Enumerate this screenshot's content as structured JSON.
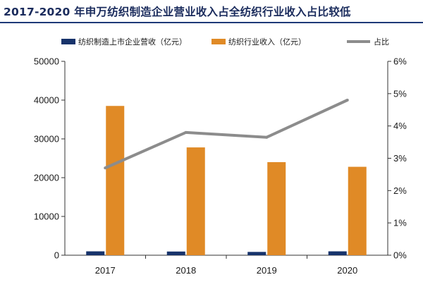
{
  "title": "2017-2020 年申万纺织制造企业营业收入占全纺织行业收入占比较低",
  "colors": {
    "title": "#1a2b5c",
    "rule": "#1f3a78",
    "manufacturing": "#17336b",
    "industry": "#e08a26",
    "ratio": "#8c8c8c"
  },
  "chart_data": {
    "type": "bar",
    "categories": [
      "2017",
      "2018",
      "2019",
      "2020"
    ],
    "series": [
      {
        "name": "纺织制造上市企业营收（亿元）",
        "kind": "bar",
        "axis": "left",
        "values": [
          1000,
          950,
          850,
          1000
        ]
      },
      {
        "name": "纺织行业收入（亿元）",
        "kind": "bar",
        "axis": "left",
        "values": [
          38500,
          27800,
          24000,
          22800
        ]
      },
      {
        "name": "占比",
        "kind": "line",
        "axis": "right",
        "values": [
          2.7,
          3.8,
          3.65,
          4.8
        ]
      }
    ],
    "y_left": {
      "min": 0,
      "max": 50000,
      "ticks": [
        "0",
        "10000",
        "20000",
        "30000",
        "40000",
        "50000"
      ]
    },
    "y_right": {
      "min": 0,
      "max": 6,
      "unit": "%",
      "ticks": [
        "0%",
        "1%",
        "2%",
        "3%",
        "4%",
        "5%",
        "6%"
      ]
    },
    "grid": false,
    "legend_position": "top"
  }
}
